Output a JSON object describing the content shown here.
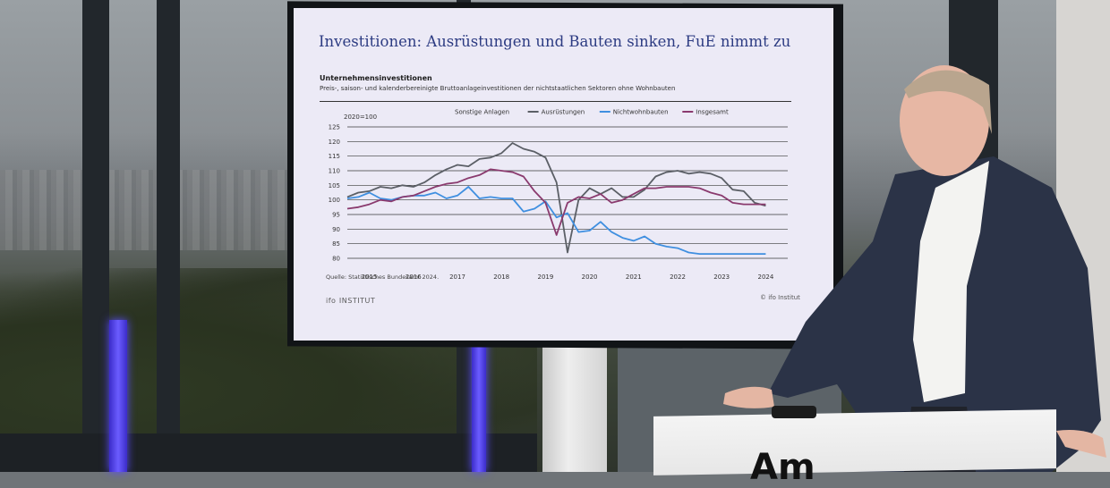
{
  "slide": {
    "title": "Investitionen: Ausrüstungen und Bauten sinken, FuE nimmt zu",
    "chart_title": "Unternehmensinvestitionen",
    "chart_subtitle": "Preis-, saison- und kalenderbereinigte Bruttoanlageinvestitionen der nichtstaatlichen Sektoren ohne Wohnbauten",
    "source": "Quelle: Statistisches Bundesamt 2024.",
    "logo_main": "ifo",
    "logo_sub": "INSTITUT",
    "copyright": "© ifo Institut",
    "podium_text": "Am"
  },
  "colors": {
    "sonstige": "#d8d8d8",
    "ausruestungen": "#5b5f66",
    "nichtwohnbauten": "#3f8fe0",
    "insgesamt": "#8a3a6e"
  },
  "chart_data": {
    "type": "line",
    "ylabel": "2020=100",
    "ylim": [
      80,
      125
    ],
    "yticks": [
      80,
      85,
      90,
      95,
      100,
      105,
      110,
      115,
      120,
      125
    ],
    "xlim": [
      2014.5,
      2024.5
    ],
    "xticks": [
      "2015",
      "2016",
      "2017",
      "2018",
      "2019",
      "2020",
      "2021",
      "2022",
      "2023",
      "2024"
    ],
    "grid": true,
    "legend_position": "top",
    "series": [
      {
        "name": "Sonstige Anlagen",
        "colorKey": "sonstige",
        "x": [
          2014.5,
          2024.5
        ],
        "y": [
          null,
          null
        ]
      },
      {
        "name": "Ausrüstungen",
        "colorKey": "ausruestungen",
        "x": [
          2014.5,
          2014.75,
          2015,
          2015.25,
          2015.5,
          2015.75,
          2016,
          2016.25,
          2016.5,
          2016.75,
          2017,
          2017.25,
          2017.5,
          2017.75,
          2018,
          2018.25,
          2018.5,
          2018.75,
          2019,
          2019.25,
          2019.5,
          2019.75,
          2020,
          2020.25,
          2020.5,
          2020.75,
          2021,
          2021.25,
          2021.5,
          2021.75,
          2022,
          2022.25,
          2022.5,
          2022.75,
          2023,
          2023.25,
          2023.5,
          2023.75,
          2024
        ],
        "y": [
          101,
          102.5,
          103,
          104.5,
          104,
          105,
          104.5,
          106,
          108.5,
          110.5,
          112,
          111.5,
          114,
          114.5,
          116,
          119.5,
          117.5,
          116.5,
          114.5,
          106,
          82,
          100,
          104,
          102,
          104,
          101,
          101,
          103.5,
          108,
          109.5,
          110,
          109,
          109.5,
          109,
          107.5,
          103.5,
          103,
          99,
          98
        ]
      },
      {
        "name": "Nichtwohnbauten",
        "colorKey": "nichtwohnbauten",
        "x": [
          2014.5,
          2014.75,
          2015,
          2015.25,
          2015.5,
          2015.75,
          2016,
          2016.25,
          2016.5,
          2016.75,
          2017,
          2017.25,
          2017.5,
          2017.75,
          2018,
          2018.25,
          2018.5,
          2018.75,
          2019,
          2019.25,
          2019.5,
          2019.75,
          2020,
          2020.25,
          2020.5,
          2020.75,
          2021,
          2021.25,
          2021.5,
          2021.75,
          2022,
          2022.25,
          2022.5,
          2022.75,
          2023,
          2023.25,
          2023.5,
          2023.75,
          2024
        ],
        "y": [
          100.5,
          101,
          102.5,
          100.5,
          100,
          101,
          101.5,
          101.5,
          102.5,
          100.5,
          101.5,
          104.5,
          100.5,
          101,
          100.5,
          100.5,
          96,
          97,
          99.5,
          94,
          95.5,
          89,
          89.5,
          92.5,
          89,
          87,
          86,
          87.5,
          85,
          84,
          83.5,
          82,
          81.5,
          81.5,
          81.5,
          81.5,
          81.5,
          81.5,
          81.5
        ]
      },
      {
        "name": "Insgesamt",
        "colorKey": "insgesamt",
        "x": [
          2014.5,
          2014.75,
          2015,
          2015.25,
          2015.5,
          2015.75,
          2016,
          2016.25,
          2016.5,
          2016.75,
          2017,
          2017.25,
          2017.5,
          2017.75,
          2018,
          2018.25,
          2018.5,
          2018.75,
          2019,
          2019.25,
          2019.5,
          2019.75,
          2020,
          2020.25,
          2020.5,
          2020.75,
          2021,
          2021.25,
          2021.5,
          2021.75,
          2022,
          2022.25,
          2022.5,
          2022.75,
          2023,
          2023.25,
          2023.5,
          2023.75,
          2024
        ],
        "y": [
          97,
          97.5,
          98.5,
          100,
          99.5,
          101,
          101.5,
          103,
          104.5,
          105.5,
          106,
          107.5,
          108.5,
          110.5,
          110,
          109.5,
          108,
          103,
          99,
          88,
          99,
          101,
          100.5,
          102,
          99,
          100,
          102,
          104,
          104,
          104.5,
          104.5,
          104.5,
          104,
          102.5,
          101.5,
          99,
          98.5,
          98.5,
          98.5
        ]
      }
    ]
  }
}
